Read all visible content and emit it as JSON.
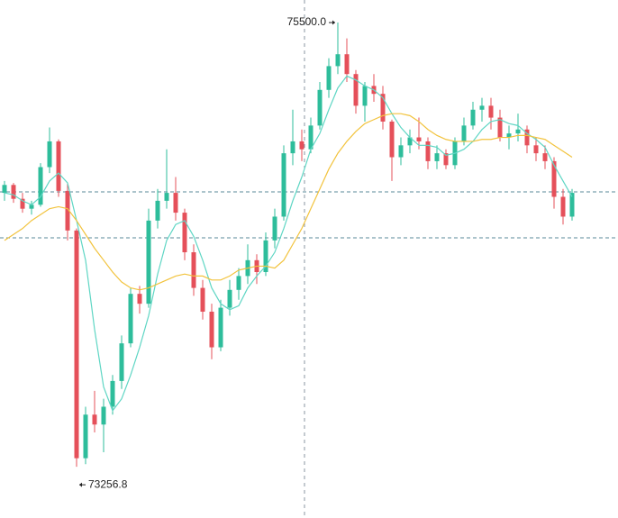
{
  "chart_data": {
    "type": "candlestick",
    "ylim": [
      72998,
      75614
    ],
    "up_color": "#2ebd9b",
    "down_color": "#e5505a",
    "candles": [
      [
        74640,
        74700,
        74600,
        74680
      ],
      [
        74680,
        74690,
        74590,
        74610
      ],
      [
        74610,
        74640,
        74540,
        74560
      ],
      [
        74560,
        74600,
        74530,
        74580
      ],
      [
        74580,
        74790,
        74570,
        74770
      ],
      [
        74770,
        74970,
        74740,
        74900
      ],
      [
        74900,
        74910,
        74620,
        74650
      ],
      [
        74650,
        74690,
        74400,
        74450
      ],
      [
        74450,
        74460,
        73256.8,
        73300
      ],
      [
        73300,
        73560,
        73270,
        73520
      ],
      [
        73520,
        73640,
        73430,
        73470
      ],
      [
        73470,
        73600,
        73330,
        73560
      ],
      [
        73560,
        73720,
        73520,
        73690
      ],
      [
        73690,
        73920,
        73650,
        73880
      ],
      [
        73880,
        74160,
        73860,
        74130
      ],
      [
        74130,
        74170,
        74030,
        74080
      ],
      [
        74080,
        74560,
        74060,
        74500
      ],
      [
        74500,
        74660,
        74460,
        74600
      ],
      [
        74600,
        74860,
        74560,
        74640
      ],
      [
        74640,
        74720,
        74500,
        74540
      ],
      [
        74540,
        74560,
        74300,
        74340
      ],
      [
        74340,
        74380,
        74120,
        74160
      ],
      [
        74160,
        74200,
        74000,
        74040
      ],
      [
        74040,
        74080,
        73800,
        73860
      ],
      [
        73860,
        74100,
        73840,
        74060
      ],
      [
        74060,
        74200,
        74020,
        74150
      ],
      [
        74150,
        74260,
        74100,
        74220
      ],
      [
        74220,
        74380,
        74180,
        74300
      ],
      [
        74300,
        74330,
        74180,
        74240
      ],
      [
        74240,
        74440,
        74220,
        74400
      ],
      [
        74400,
        74560,
        74360,
        74520
      ],
      [
        74520,
        74880,
        74500,
        74840
      ],
      [
        74840,
        75060,
        74780,
        74900
      ],
      [
        74900,
        74960,
        74800,
        74860
      ],
      [
        74860,
        75020,
        74840,
        74980
      ],
      [
        74980,
        75200,
        74960,
        75160
      ],
      [
        75160,
        75320,
        75120,
        75280
      ],
      [
        75280,
        75500,
        75240,
        75340
      ],
      [
        75340,
        75420,
        75200,
        75240
      ],
      [
        75240,
        75260,
        75040,
        75080
      ],
      [
        75080,
        75200,
        75000,
        75180
      ],
      [
        75180,
        75240,
        75100,
        75140
      ],
      [
        75140,
        75180,
        74960,
        75000
      ],
      [
        75000,
        75010,
        74700,
        74820
      ],
      [
        74820,
        74920,
        74780,
        74880
      ],
      [
        74880,
        74960,
        74840,
        74920
      ],
      [
        74920,
        75020,
        74860,
        74900
      ],
      [
        74900,
        74920,
        74760,
        74800
      ],
      [
        74800,
        74880,
        74760,
        74840
      ],
      [
        74840,
        74860,
        74760,
        74780
      ],
      [
        74780,
        74920,
        74760,
        74900
      ],
      [
        74900,
        75020,
        74880,
        74980
      ],
      [
        74980,
        75100,
        74960,
        75060
      ],
      [
        75060,
        75120,
        75000,
        75080
      ],
      [
        75080,
        75120,
        74960,
        75020
      ],
      [
        75020,
        75060,
        74900,
        74920
      ],
      [
        74920,
        74980,
        74860,
        74940
      ],
      [
        74940,
        75040,
        74900,
        74960
      ],
      [
        74960,
        74980,
        74840,
        74880
      ],
      [
        74880,
        74920,
        74800,
        74840
      ],
      [
        74840,
        74880,
        74760,
        74800
      ],
      [
        74800,
        74820,
        74560,
        74620
      ],
      [
        74620,
        74660,
        74480,
        74520
      ],
      [
        74520,
        74660,
        74500,
        74640
      ]
    ],
    "series": [
      {
        "color": "#5fd6c4",
        "values": [
          74640,
          74630,
          74600,
          74580,
          74620,
          74700,
          74740,
          74690,
          74500,
          74300,
          73950,
          73660,
          73540,
          73600,
          73720,
          73860,
          74020,
          74230,
          74400,
          74480,
          74500,
          74420,
          74300,
          74160,
          74080,
          74050,
          74070,
          74160,
          74220,
          74270,
          74340,
          74460,
          74600,
          74720,
          74860,
          74940,
          75060,
          75170,
          75230,
          75210,
          75180,
          75160,
          75120,
          75040,
          74970,
          74920,
          74880,
          74880,
          74870,
          74830,
          74840,
          74860,
          74900,
          74960,
          75000,
          75010,
          74990,
          74980,
          74940,
          74910,
          74870,
          74780,
          74700,
          74620
        ]
      },
      {
        "color": "#f2c33d",
        "values": [
          74400,
          74430,
          74460,
          74500,
          74530,
          74560,
          74570,
          74560,
          74500,
          74430,
          74360,
          74300,
          74240,
          74190,
          74160,
          74150,
          74160,
          74180,
          74200,
          74220,
          74230,
          74220,
          74220,
          74200,
          74200,
          74220,
          74250,
          74260,
          74270,
          74270,
          74260,
          74300,
          74380,
          74460,
          74560,
          74660,
          74760,
          74840,
          74900,
          74950,
          74990,
          75010,
          75030,
          75040,
          75040,
          75030,
          75000,
          74960,
          74930,
          74910,
          74900,
          74900,
          74900,
          74910,
          74910,
          74920,
          74920,
          74930,
          74930,
          74920,
          74910,
          74880,
          74850,
          74820
        ]
      }
    ],
    "price_lines": [
      74645,
      74413
    ],
    "annotations": [
      {
        "value": 75500,
        "label": "75500.0"
      },
      {
        "value": 73256.8,
        "label": "73256.8"
      }
    ]
  }
}
